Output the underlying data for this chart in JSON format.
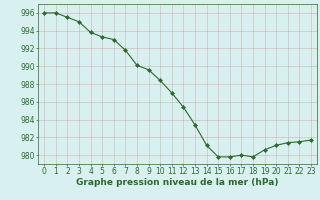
{
  "x": [
    0,
    1,
    2,
    3,
    4,
    5,
    6,
    7,
    8,
    9,
    10,
    11,
    12,
    13,
    14,
    15,
    16,
    17,
    18,
    19,
    20,
    21,
    22,
    23
  ],
  "y": [
    996.0,
    996.0,
    995.5,
    995.0,
    993.8,
    993.3,
    993.0,
    991.8,
    990.1,
    989.6,
    988.4,
    987.0,
    985.4,
    983.4,
    981.1,
    979.8,
    979.8,
    980.0,
    979.8,
    980.6,
    981.1,
    981.4,
    981.5,
    981.7
  ],
  "line_color": "#2d6a2d",
  "marker": "D",
  "marker_size": 2.0,
  "background_color": "#d8f0f0",
  "grid_color": "#b0c8c8",
  "grid_color_minor": "#c8e0e0",
  "ylim": [
    979,
    997
  ],
  "xlim": [
    -0.5,
    23.5
  ],
  "yticks": [
    980,
    982,
    984,
    986,
    988,
    990,
    992,
    994,
    996
  ],
  "xticks": [
    0,
    1,
    2,
    3,
    4,
    5,
    6,
    7,
    8,
    9,
    10,
    11,
    12,
    13,
    14,
    15,
    16,
    17,
    18,
    19,
    20,
    21,
    22,
    23
  ],
  "xlabel": "Graphe pression niveau de la mer (hPa)",
  "xlabel_fontsize": 6.5,
  "tick_fontsize": 5.5,
  "tick_color": "#2d6a2d",
  "label_color": "#2d6a2d",
  "spine_color": "#2d6a2d"
}
